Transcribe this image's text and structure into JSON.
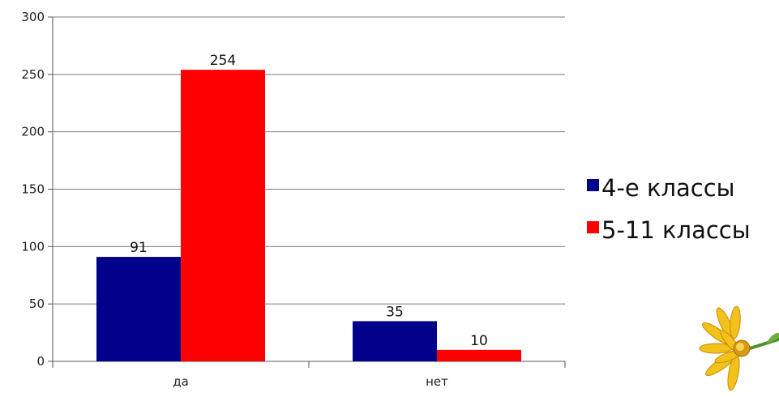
{
  "chart_data": {
    "type": "bar",
    "categories": [
      "да",
      "нет"
    ],
    "series": [
      {
        "name": "4-е классы",
        "values": [
          91,
          35
        ],
        "color": "#00008B"
      },
      {
        "name": "5-11 классы",
        "values": [
          254,
          10
        ],
        "color": "#FF0000"
      }
    ],
    "yticks": [
      0,
      50,
      100,
      150,
      200,
      250,
      300
    ],
    "ylim": [
      0,
      300
    ],
    "grid": true,
    "legend_position": "right",
    "data_labels": true
  },
  "decorations": {
    "flower_icon": "daisy-flower"
  }
}
